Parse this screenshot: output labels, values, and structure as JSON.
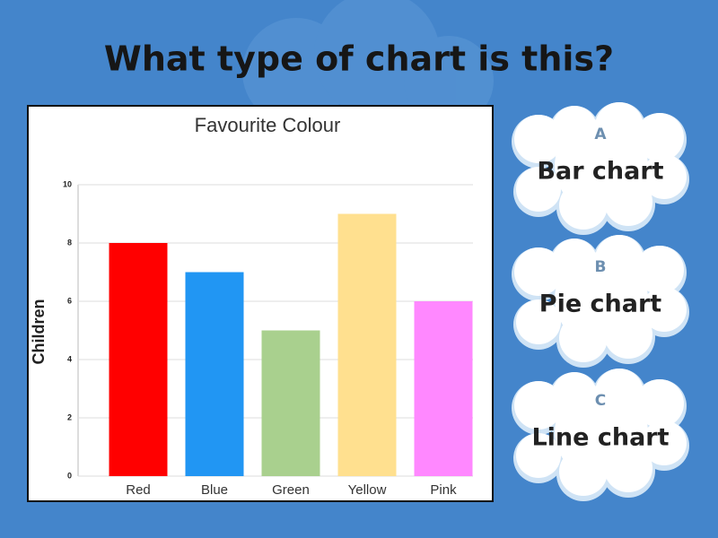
{
  "question": "What type of chart is this?",
  "chart_data": {
    "type": "bar",
    "title": "Favourite Colour",
    "y_label": "Children",
    "categories": [
      "Red",
      "Blue",
      "Green",
      "Yellow",
      "Pink"
    ],
    "values": [
      8,
      7,
      5,
      9,
      6
    ],
    "colors": [
      "#ff0000",
      "#2196f3",
      "#a9d08e",
      "#ffe08f",
      "#ff88ff"
    ],
    "ylim": [
      0,
      10
    ],
    "yticks": [
      0,
      2,
      4,
      6,
      8,
      10
    ],
    "grid": true
  },
  "options": [
    {
      "letter": "A",
      "text": "Bar chart"
    },
    {
      "letter": "B",
      "text": "Pie chart"
    },
    {
      "letter": "C",
      "text": "Line chart"
    }
  ]
}
